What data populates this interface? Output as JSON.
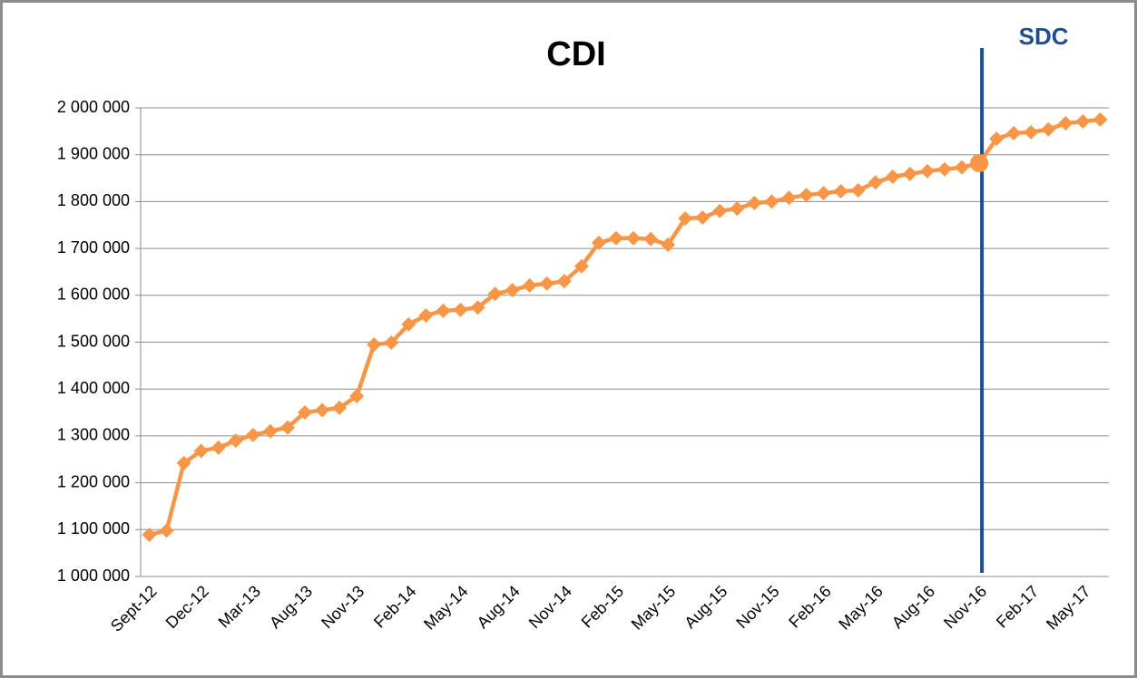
{
  "chart_data": {
    "type": "line",
    "title": "CDI",
    "categories": [
      "Sept-12",
      null,
      null,
      "Dec-12",
      null,
      null,
      "Mar-13",
      null,
      null,
      "Aug-13",
      null,
      null,
      "Nov-13",
      null,
      null,
      "Feb-14",
      null,
      null,
      "May-14",
      null,
      null,
      "Aug-14",
      null,
      null,
      "Nov-14",
      null,
      null,
      "Feb-15",
      null,
      null,
      "May-15",
      null,
      null,
      "Aug-15",
      null,
      null,
      "Nov-15",
      null,
      null,
      "Feb-16",
      null,
      null,
      "May-16",
      null,
      null,
      "Aug-16",
      null,
      null,
      "Nov-16",
      null,
      null,
      "Feb-17",
      null,
      null,
      "May-17",
      null
    ],
    "series": [
      {
        "name": "CDI",
        "color": "#f79646",
        "values": [
          1089000,
          1098000,
          1242000,
          1268000,
          1275000,
          1290000,
          1302000,
          1310000,
          1318000,
          1350000,
          1355000,
          1360000,
          1385000,
          1495000,
          1499000,
          1538000,
          1557000,
          1567000,
          1569000,
          1574000,
          1603000,
          1611000,
          1621000,
          1625000,
          1630000,
          1662000,
          1712000,
          1722000,
          1722000,
          1720000,
          1708000,
          1764000,
          1766000,
          1780000,
          1785000,
          1797000,
          1800000,
          1808000,
          1814000,
          1818000,
          1822000,
          1824000,
          1841000,
          1853000,
          1859000,
          1865000,
          1869000,
          1873000,
          1882000,
          1934000,
          1946000,
          1948000,
          1954000,
          1967000,
          1971000,
          1975000
        ]
      }
    ],
    "ylim": [
      1000000,
      2000000
    ],
    "yticks": [
      {
        "value": 1000000,
        "label": "1 000 000"
      },
      {
        "value": 1100000,
        "label": "1 100 000"
      },
      {
        "value": 1200000,
        "label": "1 200 000"
      },
      {
        "value": 1300000,
        "label": "1 300 000"
      },
      {
        "value": 1400000,
        "label": "1 400 000"
      },
      {
        "value": 1500000,
        "label": "1 500 000"
      },
      {
        "value": 1600000,
        "label": "1 600 000"
      },
      {
        "value": 1700000,
        "label": "1 700 000"
      },
      {
        "value": 1800000,
        "label": "1 800 000"
      },
      {
        "value": 1900000,
        "label": "1 900 000"
      },
      {
        "value": 2000000,
        "label": "2 000 000"
      }
    ],
    "grid": true,
    "annotations": [
      {
        "text": "SDC",
        "x": "Nov-16",
        "color": "#1f4e8c"
      }
    ]
  }
}
